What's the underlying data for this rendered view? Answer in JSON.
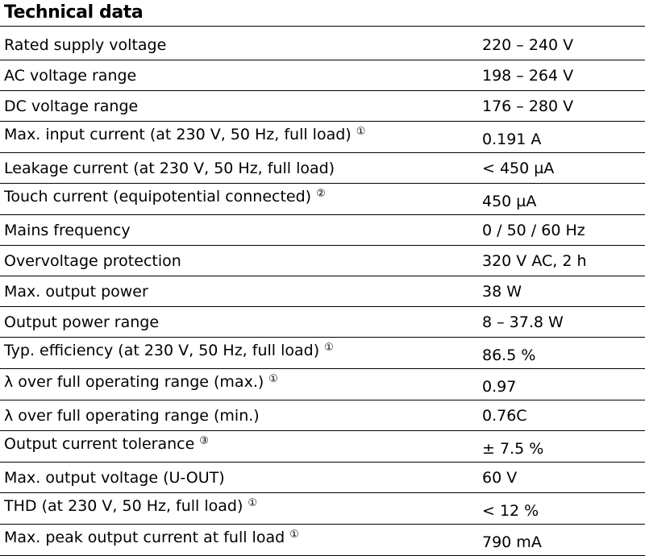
{
  "title": "Technical data",
  "rows": [
    {
      "label": "Rated supply voltage",
      "value": "220 – 240 V",
      "note": ""
    },
    {
      "label": "AC voltage range",
      "value": "198 – 264 V",
      "note": ""
    },
    {
      "label": "DC voltage range",
      "value": "176 – 280 V",
      "note": ""
    },
    {
      "label": "Max. input current (at 230 V, 50 Hz, full load)",
      "value": "0.191 A",
      "note": "①"
    },
    {
      "label": "Leakage current (at 230 V, 50 Hz, full load)",
      "value": "< 450 µA",
      "note": ""
    },
    {
      "label": "Touch current (equipotential connected)",
      "value": "450 µA",
      "note": "②"
    },
    {
      "label": "Mains frequency",
      "value": "0 / 50 / 60 Hz",
      "note": ""
    },
    {
      "label": "Overvoltage protection",
      "value": "320 V AC, 2 h",
      "note": ""
    },
    {
      "label": "Max. output power",
      "value": "38 W",
      "note": ""
    },
    {
      "label": "Output power range",
      "value": "8 – 37.8 W",
      "note": ""
    },
    {
      "label": "Typ. efficiency (at 230 V, 50 Hz, full load)",
      "value": "86.5 %",
      "note": "①"
    },
    {
      "label": "λ over full operating range (max.)",
      "value": "0.97",
      "note": "①"
    },
    {
      "label": "λ over full operating range (min.)",
      "value": "0.76C",
      "note": ""
    },
    {
      "label": "Output current tolerance",
      "value": "± 7.5 %",
      "note": "③"
    },
    {
      "label": "Max. output voltage (U-OUT)",
      "value": "60 V",
      "note": ""
    },
    {
      "label": "THD (at 230 V, 50 Hz, full load)",
      "value": "< 12 %",
      "note": "①"
    },
    {
      "label": "Max. peak output current at full load",
      "value": "790 mA",
      "note": "①"
    }
  ]
}
